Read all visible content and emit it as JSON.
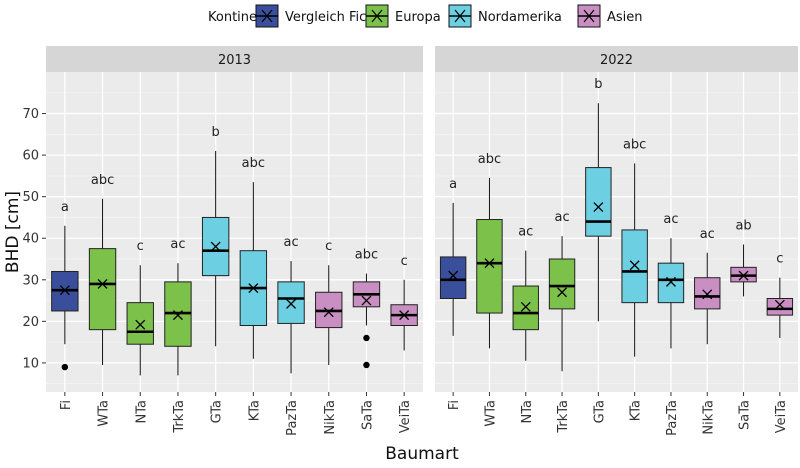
{
  "chart_data": {
    "type": "boxplot",
    "x_label": "Baumart",
    "y_label": "BHD [cm]",
    "y_ticks": [
      10,
      20,
      30,
      40,
      50,
      60,
      70
    ],
    "ylim": [
      3,
      80
    ],
    "categories": [
      "Fi",
      "WTa",
      "NTa",
      "TrkTa",
      "GTa",
      "KTa",
      "PazTa",
      "NikTa",
      "SaTa",
      "VeiTa"
    ],
    "category_group": [
      "Vergleich Fichte",
      "Europa",
      "Europa",
      "Europa",
      "Nordamerika",
      "Nordamerika",
      "Nordamerika",
      "Asien",
      "Asien",
      "Asien"
    ],
    "legend": {
      "title": "Kontinent",
      "entries": [
        {
          "name": "Vergleich Fichte",
          "color": "#3A4F9C"
        },
        {
          "name": "Europa",
          "color": "#7CC14A"
        },
        {
          "name": "Nordamerika",
          "color": "#6CCFE2"
        },
        {
          "name": "Asien",
          "color": "#C98FC2"
        }
      ]
    },
    "panels": [
      {
        "title": "2013",
        "boxes": [
          {
            "cat": "Fi",
            "wmin": 14.5,
            "q1": 22.5,
            "median": 27.5,
            "q3": 32,
            "wmax": 43,
            "mean": 27.5,
            "outliers": [
              9
            ],
            "letter": "a"
          },
          {
            "cat": "WTa",
            "wmin": 9.5,
            "q1": 18,
            "median": 29,
            "q3": 37.5,
            "wmax": 49.5,
            "mean": 29,
            "outliers": [],
            "letter": "abc"
          },
          {
            "cat": "NTa",
            "wmin": 7,
            "q1": 14.5,
            "median": 17.5,
            "q3": 24.5,
            "wmax": 33.5,
            "mean": 19.2,
            "outliers": [],
            "letter": "c"
          },
          {
            "cat": "TrkTa",
            "wmin": 7,
            "q1": 14,
            "median": 22,
            "q3": 29.5,
            "wmax": 34,
            "mean": 21.5,
            "outliers": [],
            "letter": "ac"
          },
          {
            "cat": "GTa",
            "wmin": 14,
            "q1": 31,
            "median": 37,
            "q3": 45,
            "wmax": 61,
            "mean": 38,
            "outliers": [],
            "letter": "b"
          },
          {
            "cat": "KTa",
            "wmin": 11,
            "q1": 19,
            "median": 28,
            "q3": 37,
            "wmax": 53.5,
            "mean": 28,
            "outliers": [],
            "letter": "abc"
          },
          {
            "cat": "PazTa",
            "wmin": 7.5,
            "q1": 19.5,
            "median": 25.5,
            "q3": 29.5,
            "wmax": 34.5,
            "mean": 24.2,
            "outliers": [],
            "letter": "ac"
          },
          {
            "cat": "NikTa",
            "wmin": 9.5,
            "q1": 18.5,
            "median": 22.5,
            "q3": 27,
            "wmax": 33.5,
            "mean": 22.2,
            "outliers": [],
            "letter": "c"
          },
          {
            "cat": "SaTa",
            "wmin": 19,
            "q1": 23.5,
            "median": 26.5,
            "q3": 29.5,
            "wmax": 31.5,
            "mean": 25,
            "outliers": [
              16,
              9.5
            ],
            "letter": "abc"
          },
          {
            "cat": "VeiTa",
            "wmin": 13,
            "q1": 19,
            "median": 21.5,
            "q3": 24,
            "wmax": 30,
            "mean": 21.5,
            "outliers": [],
            "letter": "c"
          }
        ]
      },
      {
        "title": "2022",
        "boxes": [
          {
            "cat": "Fi",
            "wmin": 16.5,
            "q1": 25.5,
            "median": 30,
            "q3": 35.5,
            "wmax": 48.5,
            "mean": 31,
            "outliers": [],
            "letter": "a"
          },
          {
            "cat": "WTa",
            "wmin": 13.5,
            "q1": 22,
            "median": 34,
            "q3": 44.5,
            "wmax": 54.5,
            "mean": 34,
            "outliers": [],
            "letter": "abc"
          },
          {
            "cat": "NTa",
            "wmin": 10.5,
            "q1": 18,
            "median": 22,
            "q3": 28.5,
            "wmax": 37,
            "mean": 23.5,
            "outliers": [],
            "letter": "ac"
          },
          {
            "cat": "TrkTa",
            "wmin": 8,
            "q1": 23,
            "median": 28.5,
            "q3": 35,
            "wmax": 40.5,
            "mean": 27,
            "outliers": [],
            "letter": "ac"
          },
          {
            "cat": "GTa",
            "wmin": 20,
            "q1": 40.5,
            "median": 44,
            "q3": 57,
            "wmax": 72.5,
            "mean": 47.5,
            "outliers": [],
            "letter": "b"
          },
          {
            "cat": "KTa",
            "wmin": 11.5,
            "q1": 24.5,
            "median": 32,
            "q3": 42,
            "wmax": 58,
            "mean": 33.5,
            "outliers": [],
            "letter": "abc"
          },
          {
            "cat": "PazTa",
            "wmin": 13.5,
            "q1": 24.5,
            "median": 30,
            "q3": 34,
            "wmax": 40,
            "mean": 29.5,
            "outliers": [],
            "letter": "ac"
          },
          {
            "cat": "NikTa",
            "wmin": 14.5,
            "q1": 23,
            "median": 26,
            "q3": 30.5,
            "wmax": 36.5,
            "mean": 26.5,
            "outliers": [],
            "letter": "ac"
          },
          {
            "cat": "SaTa",
            "wmin": 26,
            "q1": 29.5,
            "median": 31,
            "q3": 33,
            "wmax": 38.5,
            "mean": 31,
            "outliers": [],
            "letter": "ab"
          },
          {
            "cat": "VeiTa",
            "wmin": 16,
            "q1": 21.5,
            "median": 23,
            "q3": 25.5,
            "wmax": 30.5,
            "mean": 24,
            "outliers": [],
            "letter": "c"
          }
        ]
      }
    ]
  }
}
